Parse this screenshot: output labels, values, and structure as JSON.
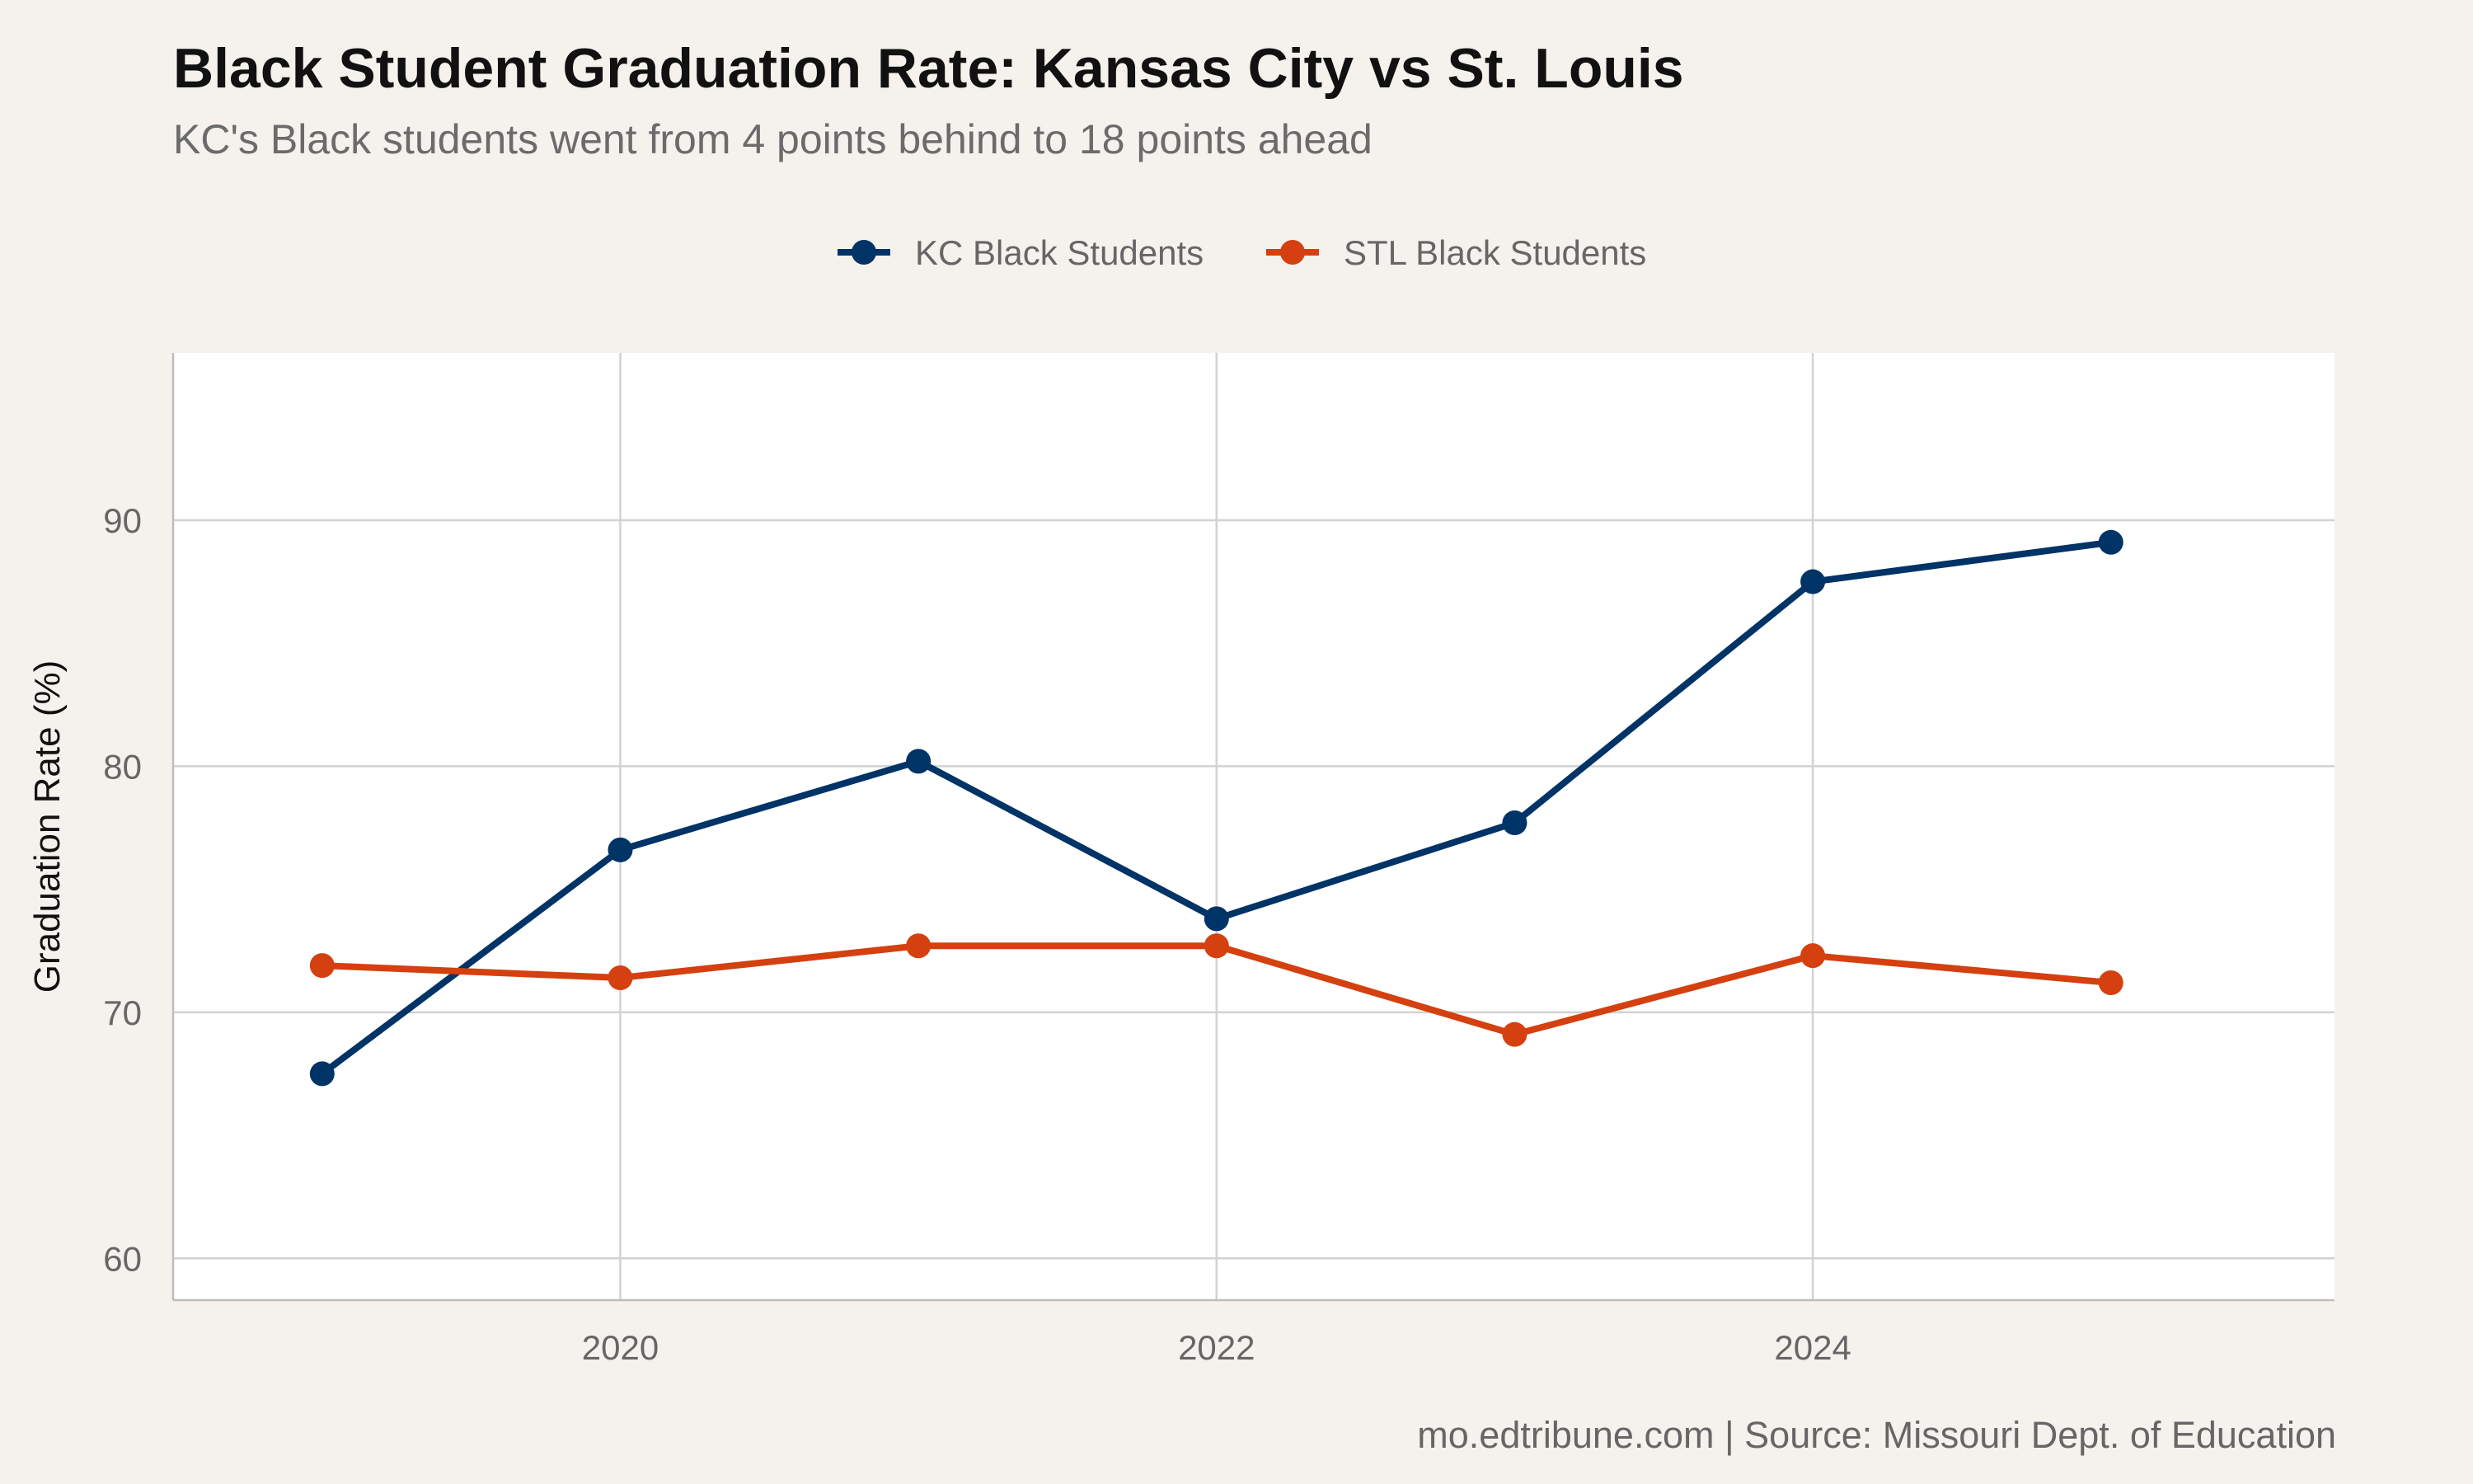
{
  "chart_data": {
    "type": "line",
    "title": "Black Student Graduation Rate: Kansas City vs St. Louis",
    "subtitle": "KC's Black students went from 4 points behind to 18 points ahead",
    "caption": "mo.edtribune.com | Source: Missouri Dept. of Education",
    "xlabel": "",
    "ylabel": "Graduation Rate (%)",
    "x": [
      2019,
      2020,
      2021,
      2022,
      2023,
      2024,
      2025
    ],
    "xticks": [
      2020,
      2022,
      2024
    ],
    "yticks": [
      60,
      70,
      80,
      90
    ],
    "xlim": [
      2018.5,
      2025.75
    ],
    "ylim": [
      58.3,
      96.8
    ],
    "grid": true,
    "legend_position": "top",
    "series": [
      {
        "name": "KC Black Students",
        "color": "#003366",
        "values": [
          67.5,
          76.6,
          80.2,
          73.8,
          77.7,
          87.5,
          89.1
        ]
      },
      {
        "name": "STL Black Students",
        "color": "#d4400f",
        "values": [
          71.9,
          71.4,
          72.7,
          72.7,
          69.1,
          72.3,
          71.2
        ]
      }
    ]
  }
}
